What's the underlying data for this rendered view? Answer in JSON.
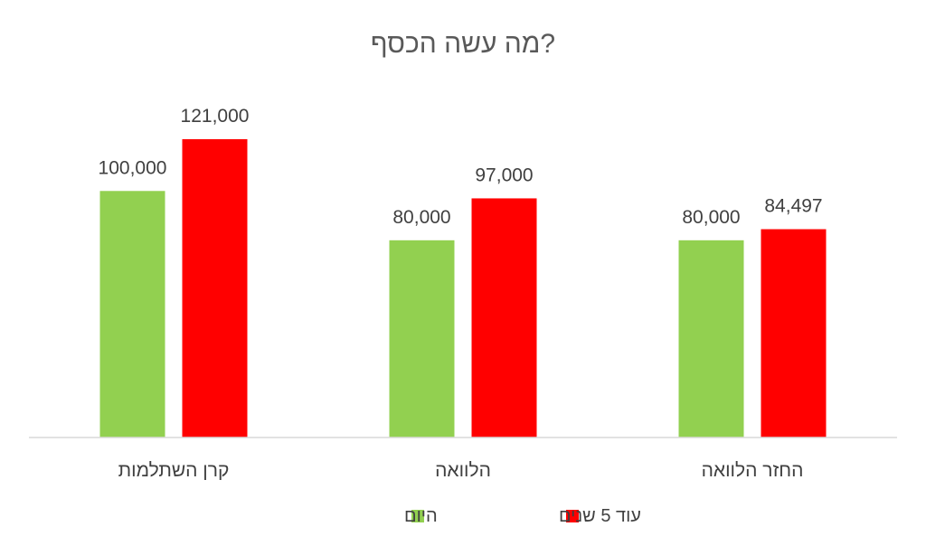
{
  "chart_data": {
    "type": "bar",
    "title": "מה עשה הכסף?",
    "xlabel": "",
    "ylabel": "",
    "categories": [
      "קרן השתלמות",
      "הלוואה",
      "החזר הלוואה"
    ],
    "series": [
      {
        "name": "היום",
        "values": [
          100000,
          80000,
          80000
        ],
        "color": "#92D050"
      },
      {
        "name": "עוד 5 שנים",
        "values": [
          121000,
          97000,
          84497
        ],
        "color": "#FF0000"
      }
    ],
    "data_labels": [
      [
        "100,000",
        "80,000",
        "80,000"
      ],
      [
        "121,000",
        "97,000",
        "84,497"
      ]
    ],
    "ylim": [
      0,
      140000
    ],
    "grid": false,
    "legend_position": "bottom"
  }
}
